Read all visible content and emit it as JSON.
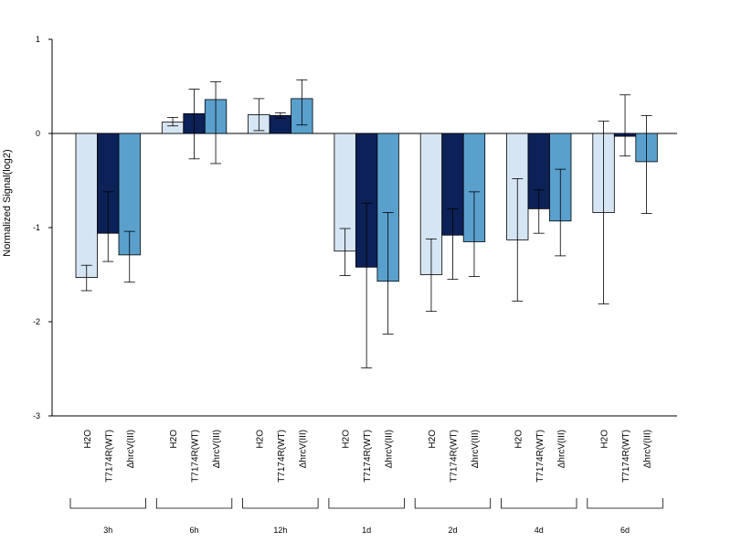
{
  "chart_data": {
    "type": "bar",
    "title": "",
    "xlabel": "",
    "ylabel": "Normalized Signal(log2)",
    "ylim": [
      -3,
      1
    ],
    "yticks": [
      1,
      0,
      -1,
      -2,
      -3
    ],
    "ytick_labels": [
      "1",
      "0",
      "-1",
      "-2",
      "-3"
    ],
    "legend": "none",
    "grid": false,
    "groups": [
      "3h",
      "6h",
      "12h",
      "1d",
      "2d",
      "4d",
      "6d"
    ],
    "series": [
      {
        "label": "H2O",
        "color": "#d6e5f4",
        "values": [
          -1.53,
          0.12,
          0.2,
          -1.25,
          -1.5,
          -1.13,
          -0.84
        ],
        "err_low": [
          -1.67,
          0.08,
          0.03,
          -1.51,
          -1.89,
          -1.78,
          -1.81
        ],
        "err_high": [
          -1.4,
          0.17,
          0.37,
          -1.01,
          -1.12,
          -0.48,
          0.13
        ]
      },
      {
        "label": "T7174R(WT)",
        "color": "#0c2157",
        "values": [
          -1.06,
          0.21,
          0.19,
          -1.42,
          -1.08,
          -0.8,
          -0.03
        ],
        "err_low": [
          -1.36,
          -0.27,
          0.16,
          -2.49,
          -1.55,
          -1.06,
          -0.24
        ],
        "err_high": [
          -0.62,
          0.47,
          0.22,
          -0.74,
          -0.8,
          -0.6,
          0.41
        ]
      },
      {
        "label": "ΔhrcV(III)",
        "color": "#5aa0cd",
        "values": [
          -1.29,
          0.36,
          0.37,
          -1.57,
          -1.15,
          -0.93,
          -0.3
        ],
        "err_low": [
          -1.58,
          -0.32,
          0.09,
          -2.13,
          -1.52,
          -1.3,
          -0.85
        ],
        "err_high": [
          -1.04,
          0.55,
          0.57,
          -0.84,
          -0.62,
          -0.38,
          0.19
        ]
      }
    ]
  }
}
